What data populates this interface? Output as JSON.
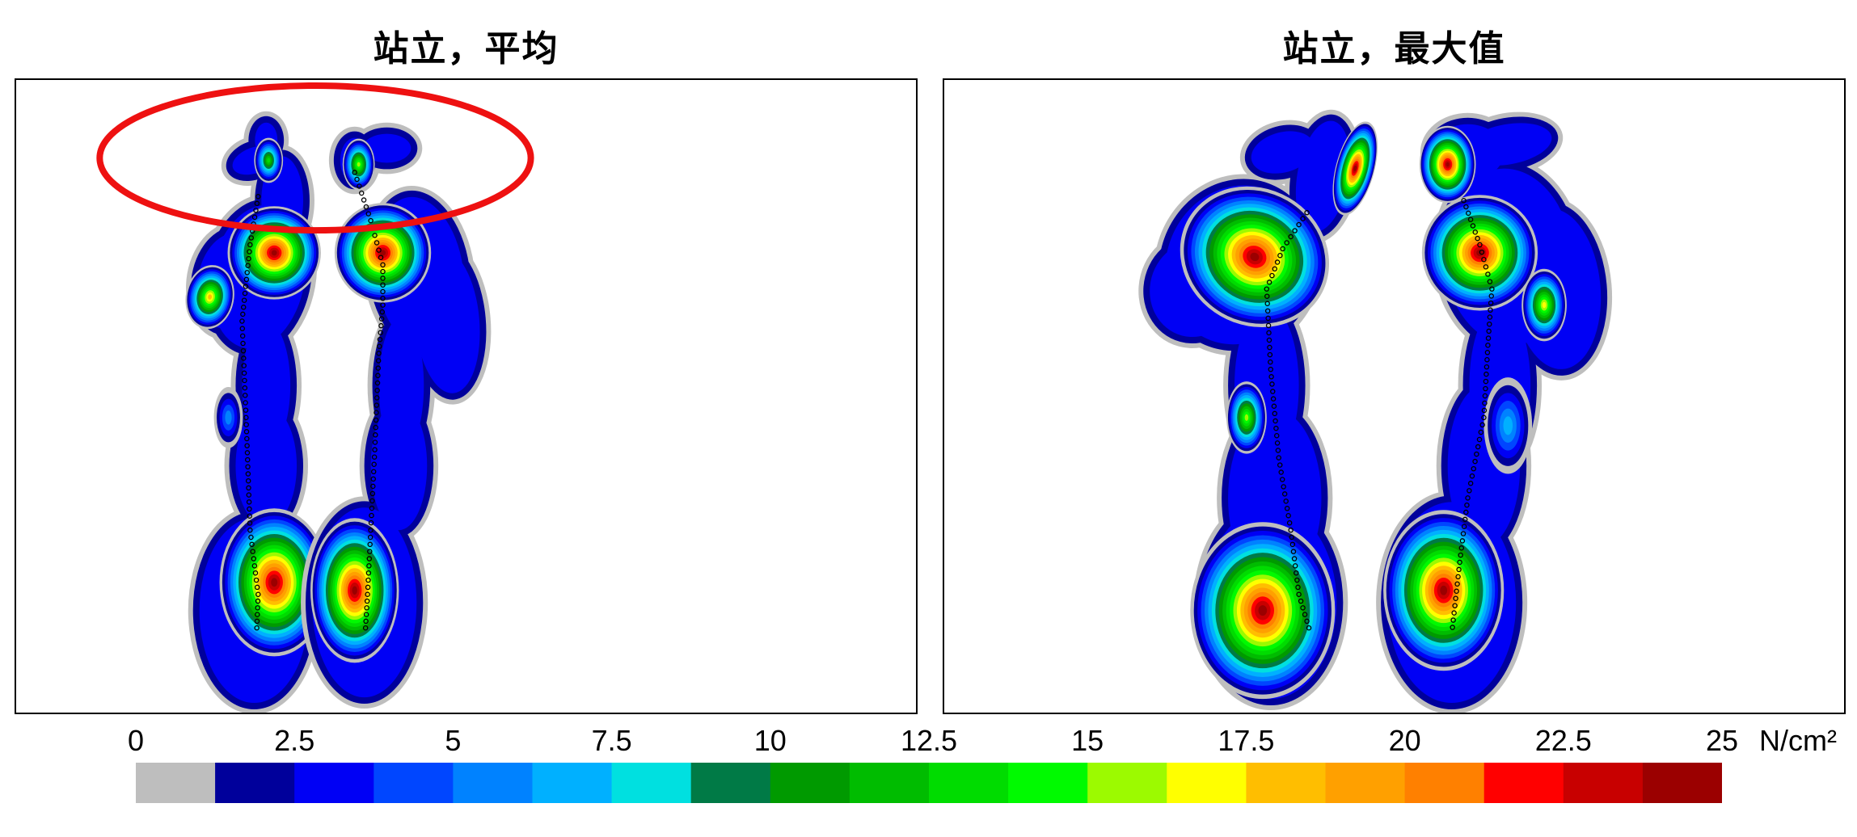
{
  "chart_data": [
    {
      "type": "heatmap",
      "title": "站立，平均",
      "annotation": "red ellipse around toe region",
      "value_range": [
        0,
        25
      ],
      "unit": "N/cm²"
    },
    {
      "type": "heatmap",
      "title": "站立，最大值",
      "value_range": [
        0,
        25
      ],
      "unit": "N/cm²"
    }
  ],
  "colorbar": {
    "tick_labels": [
      "0",
      "2.5",
      "5",
      "7.5",
      "10",
      "12.5",
      "15",
      "17.5",
      "20",
      "22.5",
      "25"
    ],
    "unit": "N/cm²",
    "colors": [
      "#bebebe",
      "#00009b",
      "#0000f5",
      "#0046ff",
      "#0082ff",
      "#00b0ff",
      "#00e0e0",
      "#007a46",
      "#009a00",
      "#00bc00",
      "#00dc00",
      "#00fa00",
      "#9cfa00",
      "#ffff00",
      "#ffbe00",
      "#ffa000",
      "#ff8000",
      "#ff0000",
      "#c80000",
      "#9b0000"
    ]
  },
  "annotation_color": "#ee1111"
}
